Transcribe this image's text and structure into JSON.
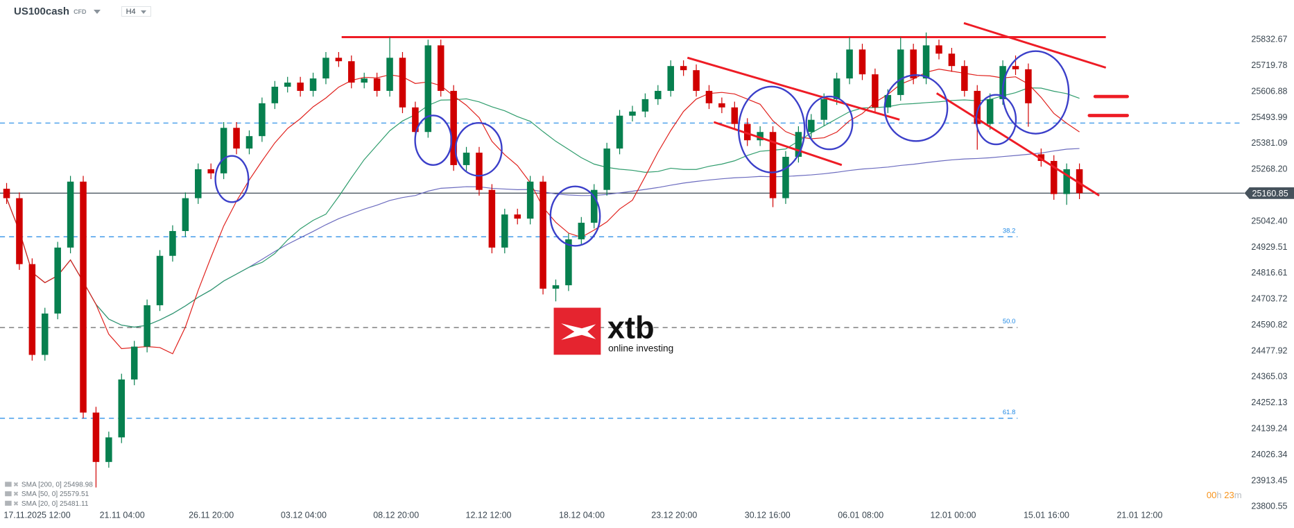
{
  "header": {
    "symbol": "US100cash",
    "instrument_type": "CFD",
    "timeframe": "H4"
  },
  "colors": {
    "bull": "#07804f",
    "bear": "#d00000",
    "sma20": "#e0201c",
    "sma50": "#2e9c6c",
    "sma200": "#6b6bbf",
    "annotation_red": "#ee1c25",
    "annotation_blue": "#3b3fc9",
    "fib": "#1e88e5",
    "price_tag": "#46525c",
    "timer": "#f7931a"
  },
  "logo": {
    "brand": "xtb",
    "tagline": "online investing"
  },
  "timer": {
    "hours": "00",
    "h_unit": "h",
    "minutes": "23",
    "m_unit": "m"
  },
  "indicators": [
    {
      "label": "SMA [200, 0] 25498.98"
    },
    {
      "label": "SMA [50, 0] 25579.51"
    },
    {
      "label": "SMA [20, 0] 25481.11"
    }
  ],
  "chart_data": {
    "type": "candlestick",
    "symbol": "US100cash",
    "timeframe": "H4",
    "current_price": "25160.85",
    "ylim": [
      23800.55,
      25900
    ],
    "y_ticks": [
      "25832.67",
      "25719.78",
      "25606.88",
      "25493.99",
      "25381.09",
      "25268.20",
      "25042.40",
      "24929.51",
      "24816.61",
      "24703.72",
      "24590.82",
      "24477.92",
      "24365.03",
      "24252.13",
      "24139.24",
      "24026.34",
      "23913.45",
      "23800.55"
    ],
    "x_ticks": [
      "17.11.2025  12:00",
      "21.11  04:00",
      "26.11  20:00",
      "03.12  04:00",
      "08.12  20:00",
      "12.12  12:00",
      "18.12  04:00",
      "23.12  20:00",
      "30.12  16:00",
      "06.01  08:00",
      "12.01  00:00",
      "15.01  16:00",
      "21.01  12:00"
    ],
    "fib_levels": [
      {
        "label": "38.2",
        "price": 24971
      },
      {
        "label": "50.0",
        "price": 24576
      },
      {
        "label": "61.8",
        "price": 24181
      }
    ],
    "horizontal_levels": [
      25840,
      25466
    ],
    "grid": false,
    "ohlc": [
      [
        25180,
        25205,
        25114,
        25139
      ],
      [
        25139,
        25164,
        24827,
        24852
      ],
      [
        24852,
        24877,
        24432,
        24457
      ],
      [
        24457,
        24662,
        24432,
        24637
      ],
      [
        24637,
        24949,
        24612,
        24924
      ],
      [
        24924,
        25236,
        24899,
        25211
      ],
      [
        25211,
        25236,
        24181,
        24206
      ],
      [
        24206,
        24231,
        23880,
        23991
      ],
      [
        23991,
        24123,
        23966,
        24098
      ],
      [
        24098,
        24375,
        24073,
        24350
      ],
      [
        24350,
        24518,
        24325,
        24493
      ],
      [
        24493,
        24698,
        24468,
        24673
      ],
      [
        24673,
        24913,
        24648,
        24888
      ],
      [
        24888,
        25021,
        24863,
        24996
      ],
      [
        24996,
        25164,
        24971,
        25139
      ],
      [
        25139,
        25290,
        25114,
        25265
      ],
      [
        25265,
        25290,
        25222,
        25247
      ],
      [
        25247,
        25470,
        25222,
        25445
      ],
      [
        25445,
        25470,
        25330,
        25355
      ],
      [
        25355,
        25434,
        25330,
        25409
      ],
      [
        25409,
        25577,
        25384,
        25552
      ],
      [
        25552,
        25649,
        25527,
        25624
      ],
      [
        25624,
        25667,
        25599,
        25642
      ],
      [
        25642,
        25667,
        25581,
        25606
      ],
      [
        25606,
        25685,
        25581,
        25660
      ],
      [
        25660,
        25775,
        25635,
        25750
      ],
      [
        25750,
        25775,
        25710,
        25735
      ],
      [
        25735,
        25760,
        25617,
        25642
      ],
      [
        25642,
        25685,
        25617,
        25660
      ],
      [
        25660,
        25685,
        25581,
        25606
      ],
      [
        25606,
        25840,
        25581,
        25750
      ],
      [
        25750,
        25775,
        25509,
        25534
      ],
      [
        25534,
        25559,
        25402,
        25427
      ],
      [
        25427,
        25829,
        25402,
        25804
      ],
      [
        25804,
        25829,
        25581,
        25606
      ],
      [
        25606,
        25631,
        25258,
        25283
      ],
      [
        25283,
        25362,
        25258,
        25337
      ],
      [
        25337,
        25362,
        25150,
        25175
      ],
      [
        25175,
        25200,
        24899,
        24924
      ],
      [
        24924,
        25093,
        24899,
        25068
      ],
      [
        25068,
        25093,
        25025,
        25050
      ],
      [
        25050,
        25236,
        25025,
        25211
      ],
      [
        25211,
        25236,
        24720,
        24745
      ],
      [
        24745,
        24785,
        24690,
        24760
      ],
      [
        24760,
        24985,
        24735,
        24960
      ],
      [
        24960,
        25057,
        24935,
        25032
      ],
      [
        25032,
        25200,
        25007,
        25175
      ],
      [
        25175,
        25380,
        25150,
        25355
      ],
      [
        25355,
        25523,
        25330,
        25498
      ],
      [
        25498,
        25541,
        25473,
        25516
      ],
      [
        25516,
        25595,
        25491,
        25570
      ],
      [
        25570,
        25631,
        25545,
        25606
      ],
      [
        25606,
        25739,
        25581,
        25714
      ],
      [
        25714,
        25739,
        25671,
        25696
      ],
      [
        25696,
        25721,
        25581,
        25606
      ],
      [
        25606,
        25631,
        25527,
        25552
      ],
      [
        25552,
        25577,
        25509,
        25534
      ],
      [
        25534,
        25559,
        25437,
        25462
      ],
      [
        25462,
        25487,
        25366,
        25391
      ],
      [
        25391,
        25452,
        25366,
        25427
      ],
      [
        25427,
        25452,
        25100,
        25139
      ],
      [
        25139,
        25344,
        25114,
        25319
      ],
      [
        25319,
        25452,
        25294,
        25427
      ],
      [
        25427,
        25505,
        25402,
        25480
      ],
      [
        25480,
        25595,
        25455,
        25570
      ],
      [
        25570,
        25685,
        25545,
        25660
      ],
      [
        25660,
        25840,
        25635,
        25786
      ],
      [
        25786,
        25811,
        25653,
        25678
      ],
      [
        25678,
        25703,
        25509,
        25534
      ],
      [
        25534,
        25613,
        25509,
        25588
      ],
      [
        25588,
        25840,
        25563,
        25786
      ],
      [
        25786,
        25811,
        25635,
        25660
      ],
      [
        25660,
        25860,
        25635,
        25804
      ],
      [
        25804,
        25829,
        25743,
        25768
      ],
      [
        25768,
        25793,
        25689,
        25714
      ],
      [
        25714,
        25739,
        25581,
        25606
      ],
      [
        25606,
        25631,
        25350,
        25462
      ],
      [
        25462,
        25595,
        25437,
        25570
      ],
      [
        25570,
        25739,
        25545,
        25714
      ],
      [
        25714,
        25760,
        25675,
        25700
      ],
      [
        25700,
        25725,
        25450,
        25552
      ],
      [
        25330,
        25355,
        25276,
        25301
      ],
      [
        25301,
        25326,
        25132,
        25157
      ],
      [
        25157,
        25290,
        25110,
        25265
      ],
      [
        25265,
        25290,
        25135,
        25160.85
      ]
    ],
    "series": [
      {
        "name": "SMA [20, 0]",
        "last": 25481.11
      },
      {
        "name": "SMA [50, 0]",
        "last": 25579.51
      },
      {
        "name": "SMA [200, 0]",
        "last": 25498.98
      }
    ]
  }
}
